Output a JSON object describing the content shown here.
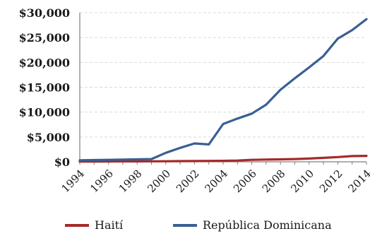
{
  "chart_data": {
    "type": "line",
    "title": "",
    "xlabel": "",
    "ylabel": "",
    "ylim": [
      0,
      30000
    ],
    "xlim": [
      1994,
      2014
    ],
    "grid": true,
    "legend_position": "bottom",
    "y_ticks": [
      0,
      5000,
      10000,
      15000,
      20000,
      25000,
      30000
    ],
    "y_tick_labels": [
      "$0",
      "$5,000",
      "$10,000",
      "$15,000",
      "$20,000",
      "$25,000",
      "$30,000"
    ],
    "x_ticks": [
      1994,
      1996,
      1998,
      2000,
      2002,
      2004,
      2006,
      2008,
      2010,
      2012,
      2014
    ],
    "x_tick_labels": [
      "1994",
      "1996",
      "1998",
      "2000",
      "2002",
      "2004",
      "2006",
      "2008",
      "2010",
      "2012",
      "2014"
    ],
    "x": [
      1994,
      1995,
      1996,
      1997,
      1998,
      1999,
      2000,
      2001,
      2002,
      2003,
      2004,
      2005,
      2006,
      2007,
      2008,
      2009,
      2010,
      2011,
      2012,
      2013,
      2014
    ],
    "series": [
      {
        "name": "Haití",
        "color": "#a52a2a",
        "values": [
          50,
          60,
          70,
          80,
          90,
          100,
          120,
          140,
          160,
          180,
          200,
          250,
          400,
          450,
          500,
          550,
          650,
          800,
          950,
          1150,
          1200
        ]
      },
      {
        "name": "República Dominicana",
        "color": "#3a5f94",
        "values": [
          300,
          350,
          400,
          450,
          500,
          550,
          1800,
          2800,
          3700,
          3500,
          7600,
          8700,
          9700,
          11500,
          14500,
          16800,
          19000,
          21300,
          24800,
          26500,
          28700
        ]
      }
    ]
  }
}
